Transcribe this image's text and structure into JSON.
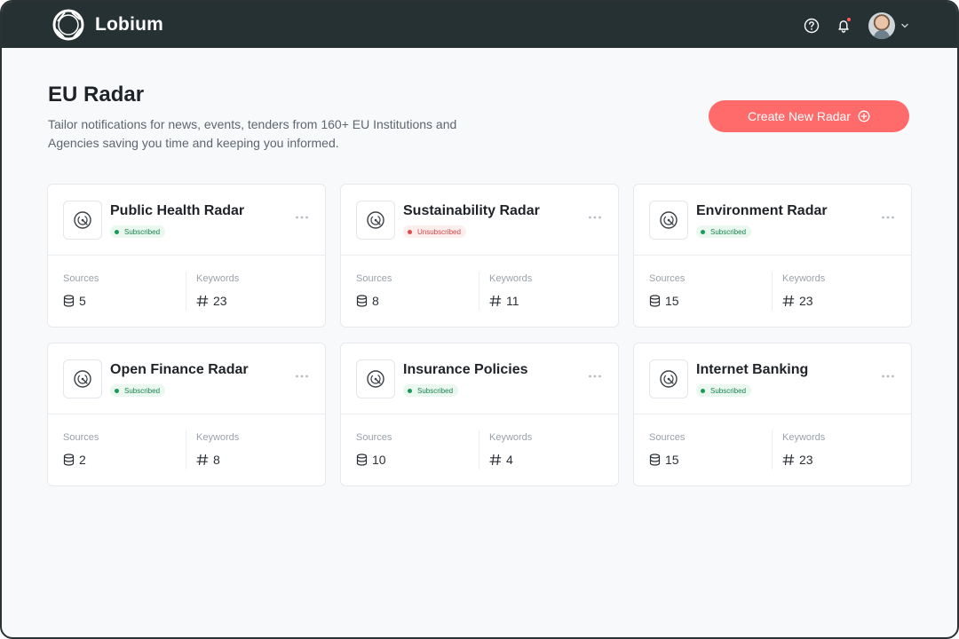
{
  "app": {
    "name": "Lobium"
  },
  "header": {
    "help_icon": "help-circle-icon",
    "bell_icon": "bell-icon",
    "accent_dot_color": "#ff5b5b"
  },
  "page": {
    "title": "EU Radar",
    "description": "Tailor notifications for news, events, tenders from 160+ EU Institutions and Agencies saving you time and keeping you informed.",
    "create_button": "Create New Radar",
    "create_button_color": "#ff6b6b"
  },
  "radars": [
    {
      "title": "Public Health Radar",
      "status": "Subscribed",
      "subscribed": true,
      "sources_label": "Sources",
      "sources": "5",
      "keywords_label": "Keywords",
      "keywords": "23"
    },
    {
      "title": "Sustainability Radar",
      "status": "Unsubscribed",
      "subscribed": false,
      "sources_label": "Sources",
      "sources": "8",
      "keywords_label": "Keywords",
      "keywords": "11"
    },
    {
      "title": "Environment Radar",
      "status": "Subscribed",
      "subscribed": true,
      "sources_label": "Sources",
      "sources": "15",
      "keywords_label": "Keywords",
      "keywords": "23"
    },
    {
      "title": "Open Finance Radar",
      "status": "Subscribed",
      "subscribed": true,
      "sources_label": "Sources",
      "sources": "2",
      "keywords_label": "Keywords",
      "keywords": "8"
    },
    {
      "title": "Insurance Policies",
      "status": "Subscribed",
      "subscribed": true,
      "sources_label": "Sources",
      "sources": "10",
      "keywords_label": "Keywords",
      "keywords": "4"
    },
    {
      "title": "Internet Banking",
      "status": "Subscribed",
      "subscribed": true,
      "sources_label": "Sources",
      "sources": "15",
      "keywords_label": "Keywords",
      "keywords": "23"
    }
  ]
}
